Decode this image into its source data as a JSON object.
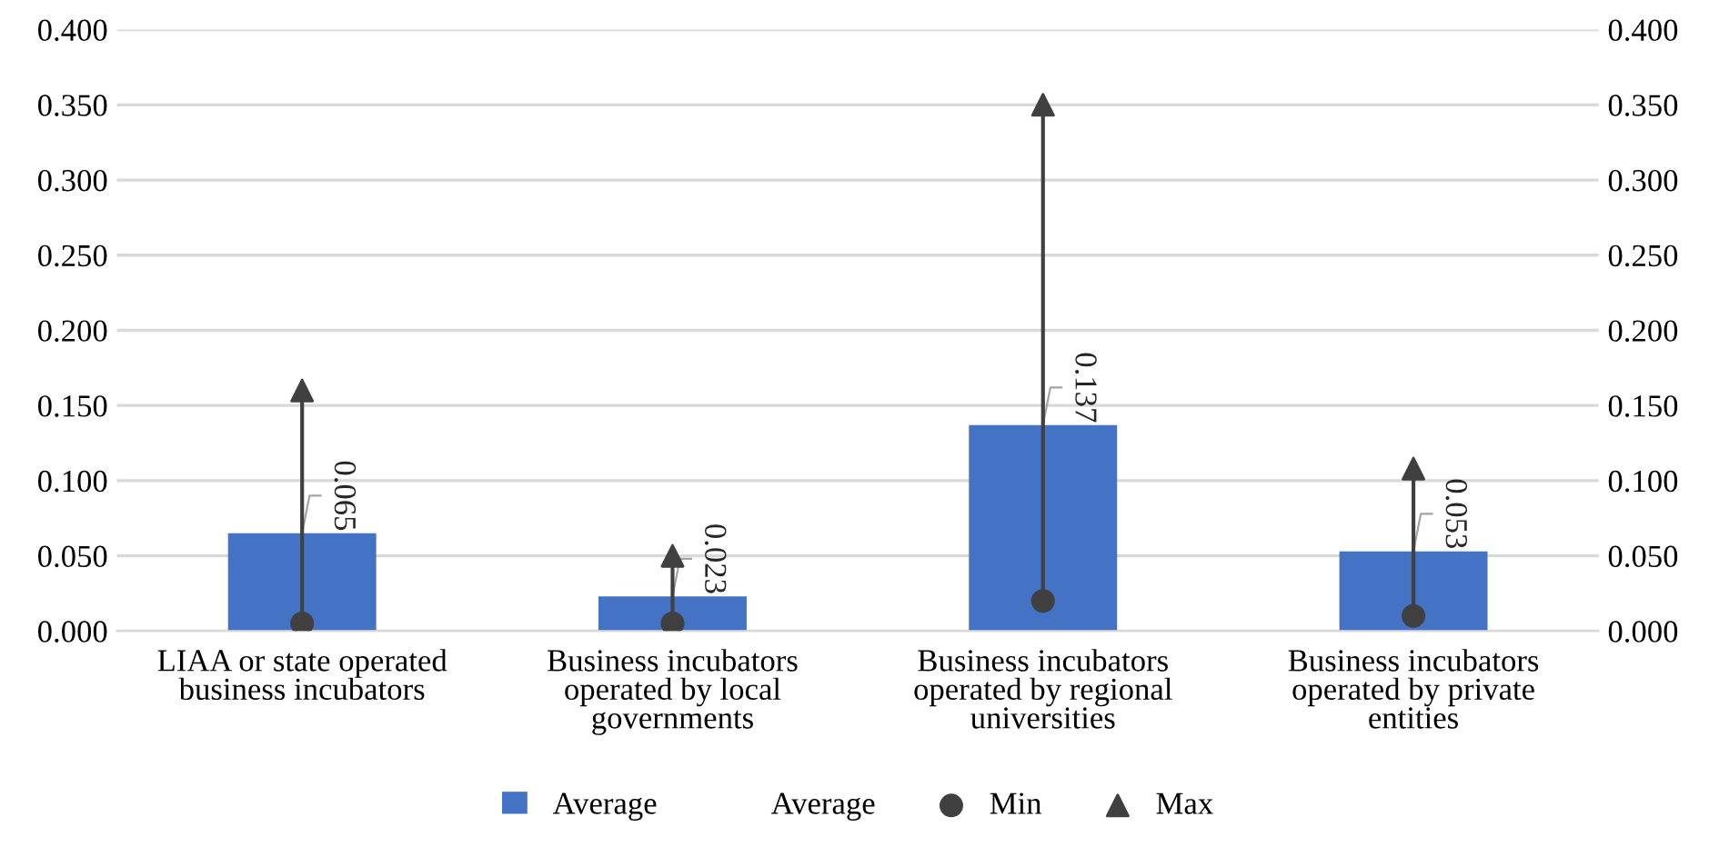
{
  "chart_data": {
    "type": "bar",
    "categories": [
      "LIAA or state operated business incubators",
      "Business incubators operated by local governments",
      "Business incubators operated by regional universities",
      "Business incubators operated by private entities"
    ],
    "series": [
      {
        "name": "Average",
        "color": "#4472c4",
        "data_labels": true,
        "values": [
          0.065,
          0.023,
          0.137,
          0.053
        ]
      },
      {
        "name": "Min",
        "type": "scatter",
        "color": "#404040",
        "marker": "circle",
        "values": [
          0.005,
          0.005,
          0.02,
          0.01
        ]
      },
      {
        "name": "Max",
        "type": "scatter",
        "color": "#404040",
        "marker": "triangle",
        "values": [
          0.16,
          0.05,
          0.35,
          0.108
        ]
      }
    ],
    "ylim": [
      0,
      0.4
    ],
    "yticks": [
      {
        "value": 0,
        "label": "0.000"
      },
      {
        "value": 0.05,
        "label": "0.050"
      },
      {
        "value": 0.1,
        "label": "0.100"
      },
      {
        "value": 0.15,
        "label": "0.150"
      },
      {
        "value": 0.2,
        "label": "0.200"
      },
      {
        "value": 0.25,
        "label": "0.250"
      },
      {
        "value": 0.3,
        "label": "0.300"
      },
      {
        "value": 0.35,
        "label": "0.350"
      },
      {
        "value": 0.4,
        "label": "0.400"
      }
    ],
    "y2lim": [
      0,
      0.4
    ],
    "y2ticks": [
      {
        "value": 0,
        "label": "0.000"
      },
      {
        "value": 0.05,
        "label": "0.050"
      },
      {
        "value": 0.1,
        "label": "0.100"
      },
      {
        "value": 0.15,
        "label": "0.150"
      },
      {
        "value": 0.2,
        "label": "0.200"
      },
      {
        "value": 0.25,
        "label": "0.250"
      },
      {
        "value": 0.3,
        "label": "0.300"
      },
      {
        "value": 0.35,
        "label": "0.350"
      },
      {
        "value": 0.4,
        "label": "0.400"
      }
    ],
    "annotations": [
      "Average"
    ],
    "grid": "y",
    "legend": "bottom"
  }
}
